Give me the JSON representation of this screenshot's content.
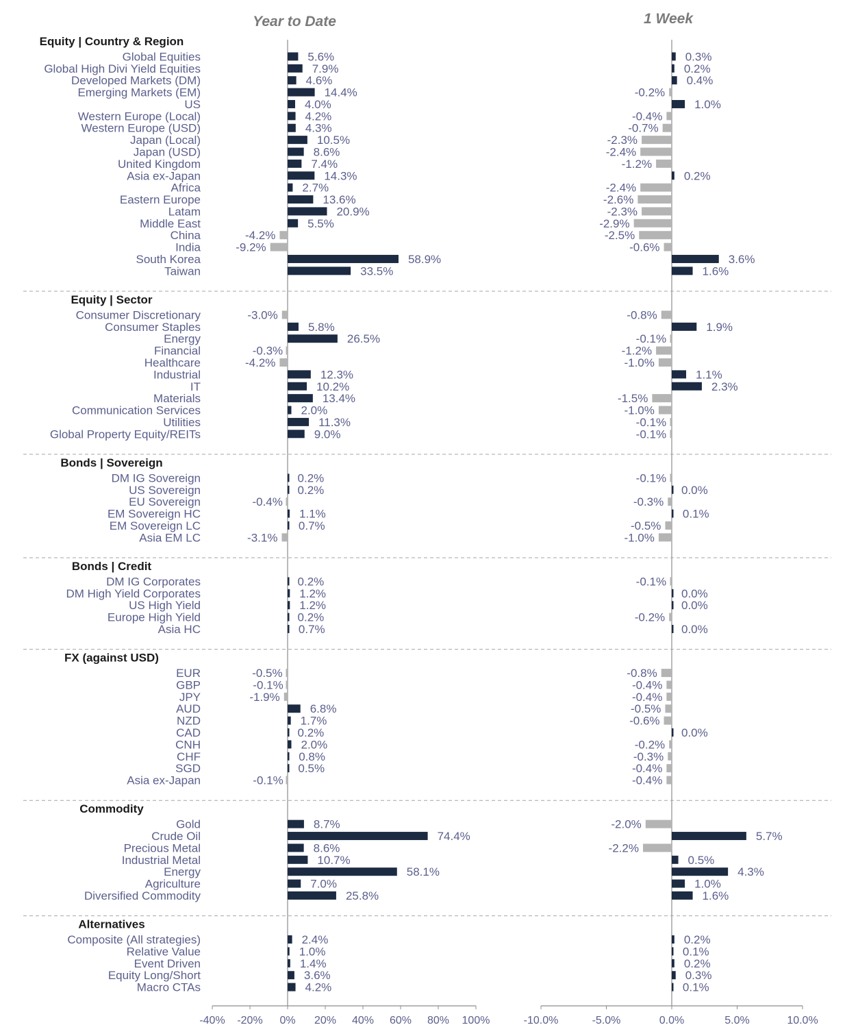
{
  "chart_data": {
    "type": "bar",
    "colors": {
      "positive": "#1c2b42",
      "negative": "#b4b4b4",
      "axis": "#8c8c8c",
      "divider": "#a6a6a6"
    },
    "panels": [
      {
        "title": "Year to Date",
        "xlim": [
          -40,
          100
        ],
        "ticks": [
          "-40%",
          "-20%",
          "0%",
          "20%",
          "40%",
          "60%",
          "80%",
          "100%"
        ]
      },
      {
        "title": "1 Week",
        "xlim": [
          -10,
          10
        ],
        "ticks": [
          "-10.0%",
          "-5.0%",
          "0.0%",
          "5.0%",
          "10.0%"
        ]
      }
    ],
    "sections": [
      {
        "title": "Equity | Country & Region",
        "rows": [
          {
            "label": "Global Equities",
            "ytd": 5.6,
            "wk": 0.3
          },
          {
            "label": "Global High Divi Yield Equities",
            "ytd": 7.9,
            "wk": 0.2
          },
          {
            "label": "Developed Markets (DM)",
            "ytd": 4.6,
            "wk": 0.4
          },
          {
            "label": "Emerging Markets (EM)",
            "ytd": 14.4,
            "wk": -0.2
          },
          {
            "label": "US",
            "ytd": 4.0,
            "wk": 1.0
          },
          {
            "label": "Western Europe (Local)",
            "ytd": 4.2,
            "wk": -0.4
          },
          {
            "label": "Western Europe (USD)",
            "ytd": 4.3,
            "wk": -0.7
          },
          {
            "label": "Japan (Local)",
            "ytd": 10.5,
            "wk": -2.3
          },
          {
            "label": "Japan (USD)",
            "ytd": 8.6,
            "wk": -2.4
          },
          {
            "label": "United Kingdom",
            "ytd": 7.4,
            "wk": -1.2
          },
          {
            "label": "Asia ex-Japan",
            "ytd": 14.3,
            "wk": 0.2
          },
          {
            "label": "Africa",
            "ytd": 2.7,
            "wk": -2.4
          },
          {
            "label": "Eastern Europe",
            "ytd": 13.6,
            "wk": -2.6
          },
          {
            "label": "Latam",
            "ytd": 20.9,
            "wk": -2.3
          },
          {
            "label": "Middle East",
            "ytd": 5.5,
            "wk": -2.9
          },
          {
            "label": "China",
            "ytd": -4.2,
            "wk": -2.5
          },
          {
            "label": "India",
            "ytd": -9.2,
            "wk": -0.6
          },
          {
            "label": "South Korea",
            "ytd": 58.9,
            "wk": 3.6
          },
          {
            "label": "Taiwan",
            "ytd": 33.5,
            "wk": 1.6
          }
        ]
      },
      {
        "title": "Equity | Sector",
        "rows": [
          {
            "label": "Consumer Discretionary",
            "ytd": -3.0,
            "wk": -0.8
          },
          {
            "label": "Consumer Staples",
            "ytd": 5.8,
            "wk": 1.9
          },
          {
            "label": "Energy",
            "ytd": 26.5,
            "wk": -0.1
          },
          {
            "label": "Financial",
            "ytd": -0.3,
            "wk": -1.2
          },
          {
            "label": "Healthcare",
            "ytd": -4.2,
            "wk": -1.0
          },
          {
            "label": "Industrial",
            "ytd": 12.3,
            "wk": 1.1
          },
          {
            "label": "IT",
            "ytd": 10.2,
            "wk": 2.3
          },
          {
            "label": "Materials",
            "ytd": 13.4,
            "wk": -1.5
          },
          {
            "label": "Communication Services",
            "ytd": 2.0,
            "wk": -1.0
          },
          {
            "label": "Utilities",
            "ytd": 11.3,
            "wk": -0.1
          },
          {
            "label": "Global Property Equity/REITs",
            "ytd": 9.0,
            "wk": -0.1
          }
        ]
      },
      {
        "title": "Bonds | Sovereign",
        "rows": [
          {
            "label": "DM IG Sovereign",
            "ytd": 0.2,
            "wk": -0.1
          },
          {
            "label": "US Sovereign",
            "ytd": 0.2,
            "wk": 0.0
          },
          {
            "label": "EU Sovereign",
            "ytd": -0.4,
            "wk": -0.3
          },
          {
            "label": "EM Sovereign HC",
            "ytd": 1.1,
            "wk": 0.1
          },
          {
            "label": "EM Sovereign LC",
            "ytd": 0.7,
            "wk": -0.5
          },
          {
            "label": "Asia EM LC",
            "ytd": -3.1,
            "wk": -1.0
          }
        ]
      },
      {
        "title": "Bonds | Credit",
        "rows": [
          {
            "label": "DM IG Corporates",
            "ytd": 0.2,
            "wk": -0.1
          },
          {
            "label": "DM High Yield Corporates",
            "ytd": 1.2,
            "wk": 0.0
          },
          {
            "label": "US High Yield",
            "ytd": 1.2,
            "wk": 0.0
          },
          {
            "label": "Europe High Yield",
            "ytd": 0.2,
            "wk": -0.2
          },
          {
            "label": "Asia HC",
            "ytd": 0.7,
            "wk": 0.0
          }
        ]
      },
      {
        "title": "FX (against USD)",
        "rows": [
          {
            "label": "EUR",
            "ytd": -0.5,
            "wk": -0.8
          },
          {
            "label": "GBP",
            "ytd": -0.1,
            "wk": -0.4
          },
          {
            "label": "JPY",
            "ytd": -1.9,
            "wk": -0.4
          },
          {
            "label": "AUD",
            "ytd": 6.8,
            "wk": -0.5
          },
          {
            "label": "NZD",
            "ytd": 1.7,
            "wk": -0.6
          },
          {
            "label": "CAD",
            "ytd": 0.2,
            "wk": 0.0
          },
          {
            "label": "CNH",
            "ytd": 2.0,
            "wk": -0.2
          },
          {
            "label": "CHF",
            "ytd": 0.8,
            "wk": -0.3
          },
          {
            "label": "SGD",
            "ytd": 0.5,
            "wk": -0.4
          },
          {
            "label": "Asia ex-Japan",
            "ytd": -0.1,
            "wk": -0.4
          }
        ]
      },
      {
        "title": "Commodity",
        "rows": [
          {
            "label": "Gold",
            "ytd": 8.7,
            "wk": -2.0
          },
          {
            "label": "Crude Oil",
            "ytd": 74.4,
            "wk": 5.7
          },
          {
            "label": "Precious Metal",
            "ytd": 8.6,
            "wk": -2.2
          },
          {
            "label": "Industrial Metal",
            "ytd": 10.7,
            "wk": 0.5
          },
          {
            "label": "Energy",
            "ytd": 58.1,
            "wk": 4.3
          },
          {
            "label": "Agriculture",
            "ytd": 7.0,
            "wk": 1.0
          },
          {
            "label": "Diversified Commodity",
            "ytd": 25.8,
            "wk": 1.6
          }
        ]
      },
      {
        "title": "Alternatives",
        "rows": [
          {
            "label": "Composite (All strategies)",
            "ytd": 2.4,
            "wk": 0.2
          },
          {
            "label": "Relative Value",
            "ytd": 1.0,
            "wk": 0.1
          },
          {
            "label": "Event Driven",
            "ytd": 1.4,
            "wk": 0.2
          },
          {
            "label": "Equity Long/Short",
            "ytd": 3.6,
            "wk": 0.3
          },
          {
            "label": "Macro CTAs",
            "ytd": 4.2,
            "wk": 0.1
          }
        ]
      }
    ]
  }
}
